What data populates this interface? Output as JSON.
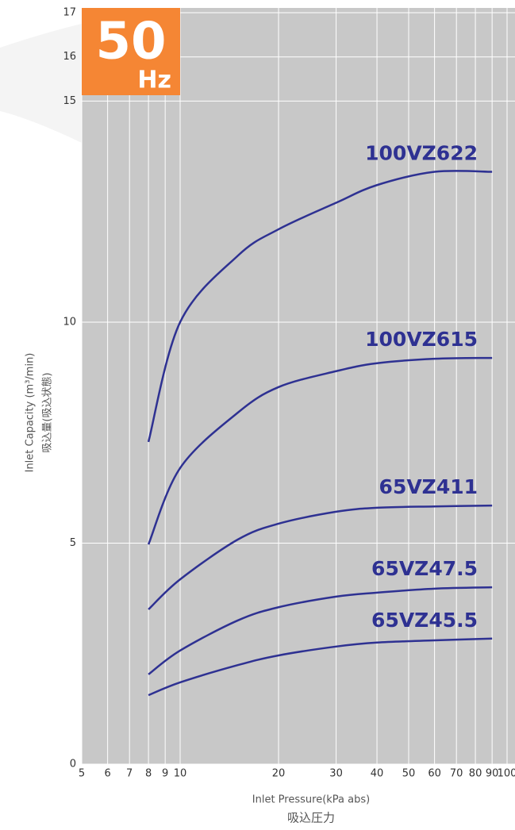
{
  "chart_data": {
    "type": "line",
    "badge": {
      "number": "50",
      "unit": "Hz"
    },
    "ylabel": "Inlet Capacity (m³/min)",
    "ylabel2": "吸込量(吸込状態)",
    "xlabel": "Inlet Pressure(kPa abs)",
    "xlabel2": "吸込圧力",
    "x": [
      8,
      10,
      15,
      20,
      30,
      40,
      60,
      90
    ],
    "series": [
      {
        "name": "100VZ622",
        "color": "#2e3192",
        "values": [
          7.29,
          10.0,
          11.5,
          12.1,
          12.7,
          13.1,
          13.4,
          13.4
        ]
      },
      {
        "name": "100VZ615",
        "color": "#2e3192",
        "values": [
          4.97,
          6.7,
          7.95,
          8.53,
          8.89,
          9.07,
          9.17,
          9.19
        ]
      },
      {
        "name": "65VZ411",
        "color": "#2e3192",
        "values": [
          3.5,
          4.18,
          5.08,
          5.44,
          5.71,
          5.8,
          5.83,
          5.85
        ]
      },
      {
        "name": "65VZ47.5",
        "color": "#2e3192",
        "values": [
          2.03,
          2.57,
          3.25,
          3.55,
          3.79,
          3.88,
          3.97,
          4.0
        ]
      },
      {
        "name": "65VZ45.5",
        "color": "#2e3192",
        "values": [
          1.56,
          1.85,
          2.24,
          2.46,
          2.66,
          2.75,
          2.8,
          2.84
        ]
      }
    ],
    "xlim": [
      5,
      100
    ],
    "xscale": "log",
    "xticks": [
      5,
      6,
      7,
      8,
      9,
      10,
      20,
      30,
      40,
      50,
      60,
      70,
      80,
      90,
      100
    ],
    "ylim": [
      0,
      17
    ],
    "yticks": [
      0,
      5,
      10,
      15,
      16,
      17
    ],
    "grid": true
  }
}
